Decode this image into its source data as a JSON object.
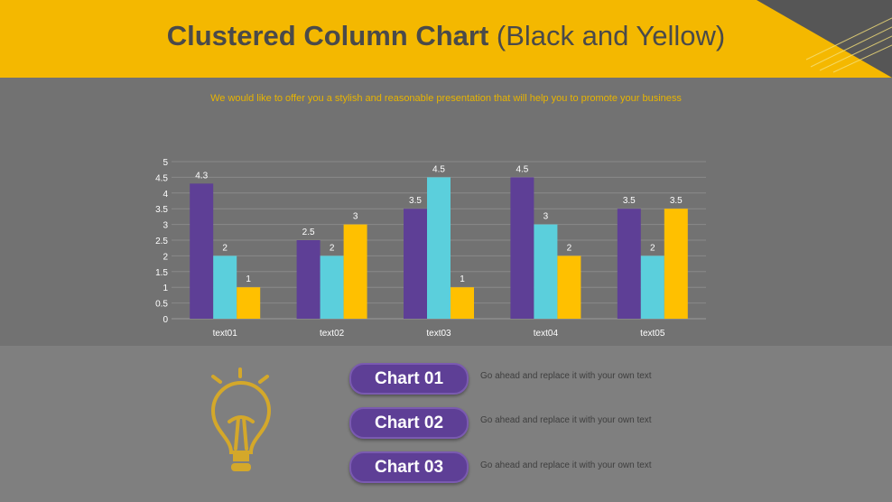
{
  "title_bold": "Clustered Column Chart",
  "title_light": "(Black and Yellow)",
  "subtitle": "We would like to offer you a stylish and reasonable presentation that will help you to promote your business",
  "colors": {
    "header": "#f4b800",
    "series1": "#5e3f96",
    "series2": "#5bcfdc",
    "series3": "#ffc000",
    "bulb": "#d4a82a"
  },
  "chart_data": {
    "type": "bar",
    "categories": [
      "text01",
      "text02",
      "text03",
      "text04",
      "text05"
    ],
    "series": [
      {
        "values": [
          4.3,
          2.5,
          3.5,
          4.5,
          3.5
        ],
        "color": "#5e3f96"
      },
      {
        "values": [
          2,
          2,
          4.5,
          3,
          2
        ],
        "color": "#5bcfdc"
      },
      {
        "values": [
          1,
          3,
          1,
          2,
          3.5
        ],
        "color": "#ffc000"
      }
    ],
    "ylim": [
      0,
      5
    ],
    "yticks": [
      "0",
      "0.5",
      "1",
      "1.5",
      "2",
      "2.5",
      "3",
      "3.5",
      "4",
      "4.5",
      "5"
    ],
    "grid": true,
    "data_labels": true
  },
  "items": [
    {
      "label": "Chart 01",
      "text": "Go ahead and replace it with your own text"
    },
    {
      "label": "Chart 02",
      "text": "Go ahead and replace it with your own text"
    },
    {
      "label": "Chart 03",
      "text": "Go ahead and replace it with your own text"
    }
  ],
  "icon": "lightbulb-icon"
}
